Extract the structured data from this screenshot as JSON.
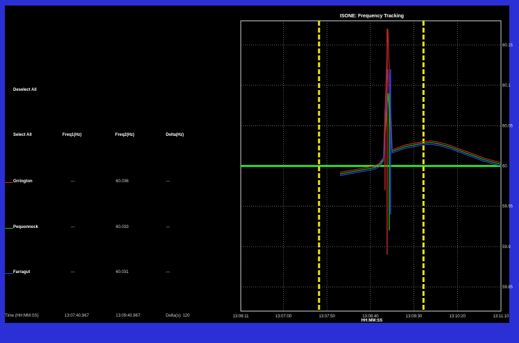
{
  "panel": {
    "deselect_all": "Deselect All",
    "select_all": "Select All",
    "col_freq1": "Freq1(Hz)",
    "col_freq2": "Freq2(Hz)",
    "col_delta": "Delta(Hz)",
    "rows": [
      {
        "name": "Orrington",
        "freq1": "---",
        "freq2": "60.036",
        "delta": "---",
        "color": "#c03030"
      },
      {
        "name": "Pequonnock",
        "freq1": "---",
        "freq2": "60.033",
        "delta": "---",
        "color": "#20c020"
      },
      {
        "name": "Farragut",
        "freq1": "---",
        "freq2": "60.031",
        "delta": "---",
        "color": "#3040e0"
      }
    ],
    "time_label": "Time (HH:MM:SS)",
    "time1": "13:07:40.967",
    "time2": "13:09:40.967",
    "delta_time": "Delta(s): 120"
  },
  "chart_data": {
    "type": "line",
    "title": "ISONE: Frequency Tracking",
    "xlabel": "HH:MM:SS",
    "x_ticks": [
      "13:06:11",
      "13:07:00",
      "13:07:50",
      "13:08:40",
      "13:09:30",
      "13:10:20",
      "13:11:10"
    ],
    "y_ticks": [
      "60.15",
      "60.1",
      "60.05",
      "60",
      "59.95",
      "59.9",
      "59.85"
    ],
    "ylim": [
      59.82,
      60.18
    ],
    "xlim_seconds_label_range": [
      "13:06:11",
      "13:11:10"
    ],
    "reference_line": {
      "value": 60.0,
      "color": "#22dd22"
    },
    "cursor_lines": [
      {
        "time": "13:07:40.967",
        "color": "#f0e020"
      },
      {
        "time": "13:09:40.967",
        "color": "#f0e020"
      }
    ],
    "series": [
      {
        "name": "Orrington",
        "color": "#c02828"
      },
      {
        "name": "Pequonnock",
        "color": "#20b020"
      },
      {
        "name": "Farragut",
        "color": "#3040e0"
      }
    ],
    "x": [
      "13:08:05",
      "13:08:15",
      "13:08:25",
      "13:08:35",
      "13:08:45",
      "13:08:50",
      "13:08:55",
      "13:09:00",
      "13:09:05",
      "13:09:10",
      "13:09:15",
      "13:09:20",
      "13:09:30",
      "13:09:40",
      "13:09:50",
      "13:10:00",
      "13:10:10",
      "13:10:20",
      "13:10:30",
      "13:10:40",
      "13:10:50",
      "13:11:00",
      "13:11:10"
    ],
    "values": [
      59.992,
      59.994,
      59.996,
      59.998,
      60.0,
      60.003,
      60.01,
      60.15,
      60.02,
      60.022,
      60.024,
      60.026,
      60.028,
      60.03,
      60.031,
      60.029,
      60.026,
      60.022,
      60.018,
      60.014,
      60.01,
      60.007,
      60.004
    ],
    "grid": true
  }
}
